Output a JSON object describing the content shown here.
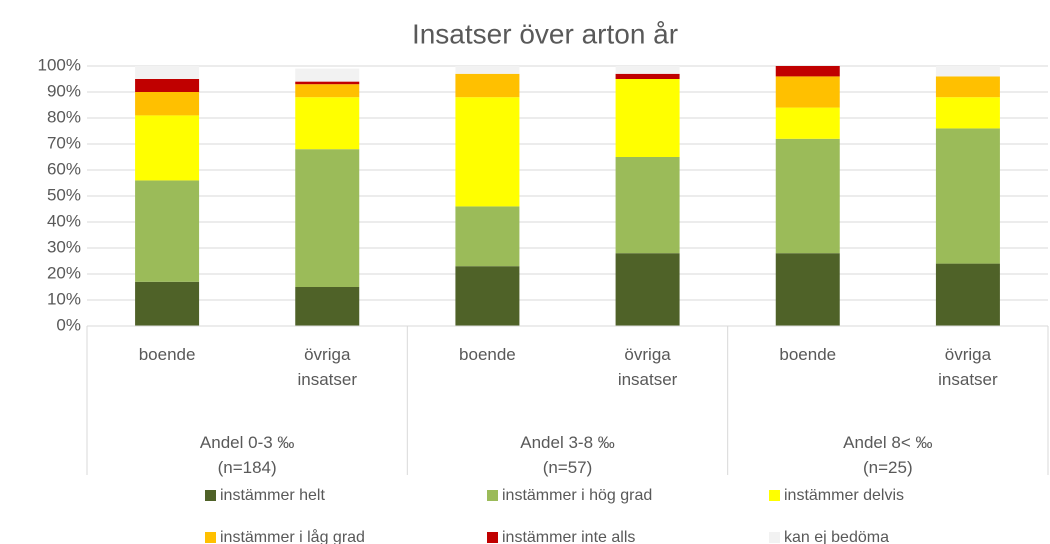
{
  "chart_data": {
    "type": "stacked_bar",
    "title": "Insatser över arton år",
    "categories": [
      "boende",
      "övriga insatser",
      "boende",
      "övriga insatser",
      "boende",
      "övriga insatser"
    ],
    "groups": [
      "Andel 0-3 ‰ (n=184)",
      "Andel 3-8 ‰ (n=57)",
      "Andel 8< ‰ (n=25)"
    ],
    "series": [
      {
        "name": "instämmer helt",
        "color": "#4f6228",
        "values": [
          17,
          15,
          23,
          28,
          28,
          24
        ]
      },
      {
        "name": "instämmer i hög grad",
        "color": "#9bbb59",
        "values": [
          39,
          53,
          23,
          37,
          44,
          52
        ]
      },
      {
        "name": "instämmer delvis",
        "color": "#ffff00",
        "values": [
          25,
          20,
          42,
          30,
          12,
          12
        ]
      },
      {
        "name": "instämmer i låg grad",
        "color": "#ffc000",
        "values": [
          9,
          5,
          9,
          0,
          12,
          8
        ]
      },
      {
        "name": "instämmer inte alls",
        "color": "#c00000",
        "values": [
          5,
          1,
          0,
          2,
          4,
          0
        ]
      },
      {
        "name": "kan ej bedöma",
        "color": "#f2f2f2",
        "values": [
          5,
          5,
          3,
          3,
          0,
          4
        ]
      }
    ],
    "ylim": [
      0,
      100
    ],
    "yticks": [
      {
        "value": 0,
        "label": "0%"
      },
      {
        "value": 10,
        "label": "10%"
      },
      {
        "value": 20,
        "label": "20%"
      },
      {
        "value": 30,
        "label": "30%"
      },
      {
        "value": 40,
        "label": "40%"
      },
      {
        "value": 50,
        "label": "50%"
      },
      {
        "value": 60,
        "label": "60%"
      },
      {
        "value": 70,
        "label": "70%"
      },
      {
        "value": 80,
        "label": "80%"
      },
      {
        "value": 90,
        "label": "90%"
      },
      {
        "value": 100,
        "label": "100%"
      }
    ],
    "grid": true,
    "legend": "bottom"
  }
}
